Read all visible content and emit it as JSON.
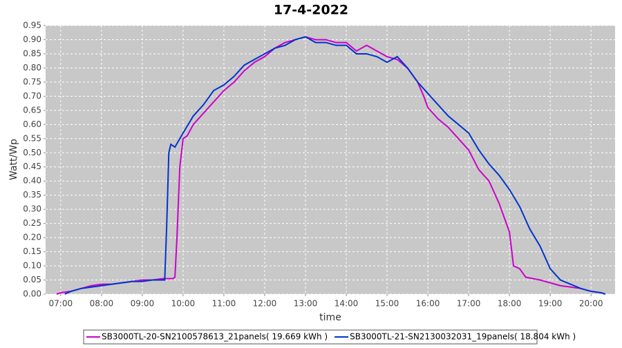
{
  "chart_data": {
    "type": "line",
    "title": "17-4-2022",
    "x_label": "time",
    "y_label": "Watt/Wp",
    "xlim": [
      6.63,
      20.59
    ],
    "ylim": [
      0,
      0.95
    ],
    "grid": true,
    "legend": "bottom",
    "xticks": [
      {
        "value": 7,
        "label": "07:00"
      },
      {
        "value": 8,
        "label": "08:00"
      },
      {
        "value": 9,
        "label": "09:00"
      },
      {
        "value": 10,
        "label": "10:00"
      },
      {
        "value": 11,
        "label": "11:00"
      },
      {
        "value": 12,
        "label": "12:00"
      },
      {
        "value": 13,
        "label": "13:00"
      },
      {
        "value": 14,
        "label": "14:00"
      },
      {
        "value": 15,
        "label": "15:00"
      },
      {
        "value": 16,
        "label": "16:00"
      },
      {
        "value": 17,
        "label": "17:00"
      },
      {
        "value": 18,
        "label": "18:00"
      },
      {
        "value": 19,
        "label": "19:00"
      },
      {
        "value": 20,
        "label": "20:00"
      }
    ],
    "yticks": [
      {
        "value": 0,
        "label": "0.00"
      },
      {
        "value": 0.05,
        "label": "0.05"
      },
      {
        "value": 0.1,
        "label": "0.10"
      },
      {
        "value": 0.15,
        "label": "0.15"
      },
      {
        "value": 0.2,
        "label": "0.20"
      },
      {
        "value": 0.25,
        "label": "0.25"
      },
      {
        "value": 0.3,
        "label": "0.30"
      },
      {
        "value": 0.35,
        "label": "0.35"
      },
      {
        "value": 0.4,
        "label": "0.40"
      },
      {
        "value": 0.45,
        "label": "0.45"
      },
      {
        "value": 0.5,
        "label": "0.50"
      },
      {
        "value": 0.55,
        "label": "0.55"
      },
      {
        "value": 0.6,
        "label": "0.60"
      },
      {
        "value": 0.65,
        "label": "0.65"
      },
      {
        "value": 0.7,
        "label": "0.70"
      },
      {
        "value": 0.75,
        "label": "0.75"
      },
      {
        "value": 0.8,
        "label": "0.80"
      },
      {
        "value": 0.85,
        "label": "0.85"
      },
      {
        "value": 0.9,
        "label": "0.90"
      },
      {
        "value": 0.95,
        "label": "0.95"
      }
    ],
    "series": [
      {
        "name": "SB3000TL-20-SN2100578613_21panels( 19.669 kWh )",
        "color": "#cc00cc",
        "x": [
          6.9,
          7.0,
          7.25,
          7.5,
          7.75,
          8.0,
          8.25,
          8.5,
          8.75,
          9.0,
          9.25,
          9.5,
          9.75,
          9.8,
          9.85,
          9.92,
          10.0,
          10.1,
          10.25,
          10.5,
          10.75,
          11.0,
          11.25,
          11.5,
          11.75,
          12.0,
          12.25,
          12.5,
          12.75,
          13.0,
          13.25,
          13.5,
          13.75,
          14.0,
          14.25,
          14.5,
          14.75,
          15.0,
          15.25,
          15.5,
          15.75,
          15.9,
          16.0,
          16.25,
          16.5,
          16.75,
          17.0,
          17.25,
          17.5,
          17.75,
          18.0,
          18.1,
          18.25,
          18.4,
          18.75,
          19.0,
          19.25,
          19.5,
          19.75,
          20.0,
          20.25,
          20.35
        ],
        "values": [
          0.0,
          0.005,
          0.01,
          0.02,
          0.03,
          0.035,
          0.035,
          0.04,
          0.045,
          0.05,
          0.05,
          0.055,
          0.055,
          0.06,
          0.2,
          0.45,
          0.55,
          0.56,
          0.6,
          0.64,
          0.68,
          0.72,
          0.75,
          0.79,
          0.82,
          0.84,
          0.87,
          0.89,
          0.9,
          0.91,
          0.9,
          0.9,
          0.89,
          0.89,
          0.86,
          0.88,
          0.86,
          0.84,
          0.83,
          0.8,
          0.75,
          0.7,
          0.66,
          0.62,
          0.59,
          0.55,
          0.51,
          0.44,
          0.4,
          0.32,
          0.22,
          0.1,
          0.09,
          0.06,
          0.05,
          0.04,
          0.03,
          0.025,
          0.02,
          0.01,
          0.005,
          0.0
        ]
      },
      {
        "name": "SB3000TL-21-SN2130032031_19panels( 18.804 kWh )",
        "color": "#0033cc",
        "x": [
          7.1,
          7.25,
          7.5,
          7.75,
          8.0,
          8.25,
          8.5,
          8.75,
          9.0,
          9.25,
          9.5,
          9.55,
          9.6,
          9.65,
          9.7,
          9.8,
          10.0,
          10.25,
          10.5,
          10.75,
          11.0,
          11.25,
          11.5,
          11.75,
          12.0,
          12.25,
          12.5,
          12.75,
          13.0,
          13.25,
          13.5,
          13.75,
          14.0,
          14.25,
          14.5,
          14.75,
          15.0,
          15.25,
          15.5,
          15.75,
          16.0,
          16.25,
          16.5,
          16.75,
          17.0,
          17.25,
          17.5,
          17.75,
          18.0,
          18.25,
          18.5,
          18.75,
          19.0,
          19.25,
          19.5,
          19.75,
          20.0,
          20.25,
          20.35
        ],
        "values": [
          0.0,
          0.01,
          0.02,
          0.025,
          0.03,
          0.035,
          0.04,
          0.045,
          0.045,
          0.05,
          0.05,
          0.05,
          0.25,
          0.5,
          0.53,
          0.52,
          0.57,
          0.63,
          0.67,
          0.72,
          0.74,
          0.77,
          0.81,
          0.83,
          0.85,
          0.87,
          0.88,
          0.9,
          0.91,
          0.89,
          0.89,
          0.88,
          0.88,
          0.85,
          0.85,
          0.84,
          0.82,
          0.84,
          0.8,
          0.75,
          0.71,
          0.67,
          0.63,
          0.6,
          0.57,
          0.51,
          0.46,
          0.42,
          0.37,
          0.31,
          0.23,
          0.17,
          0.09,
          0.05,
          0.035,
          0.02,
          0.01,
          0.005,
          0.0
        ]
      }
    ]
  }
}
